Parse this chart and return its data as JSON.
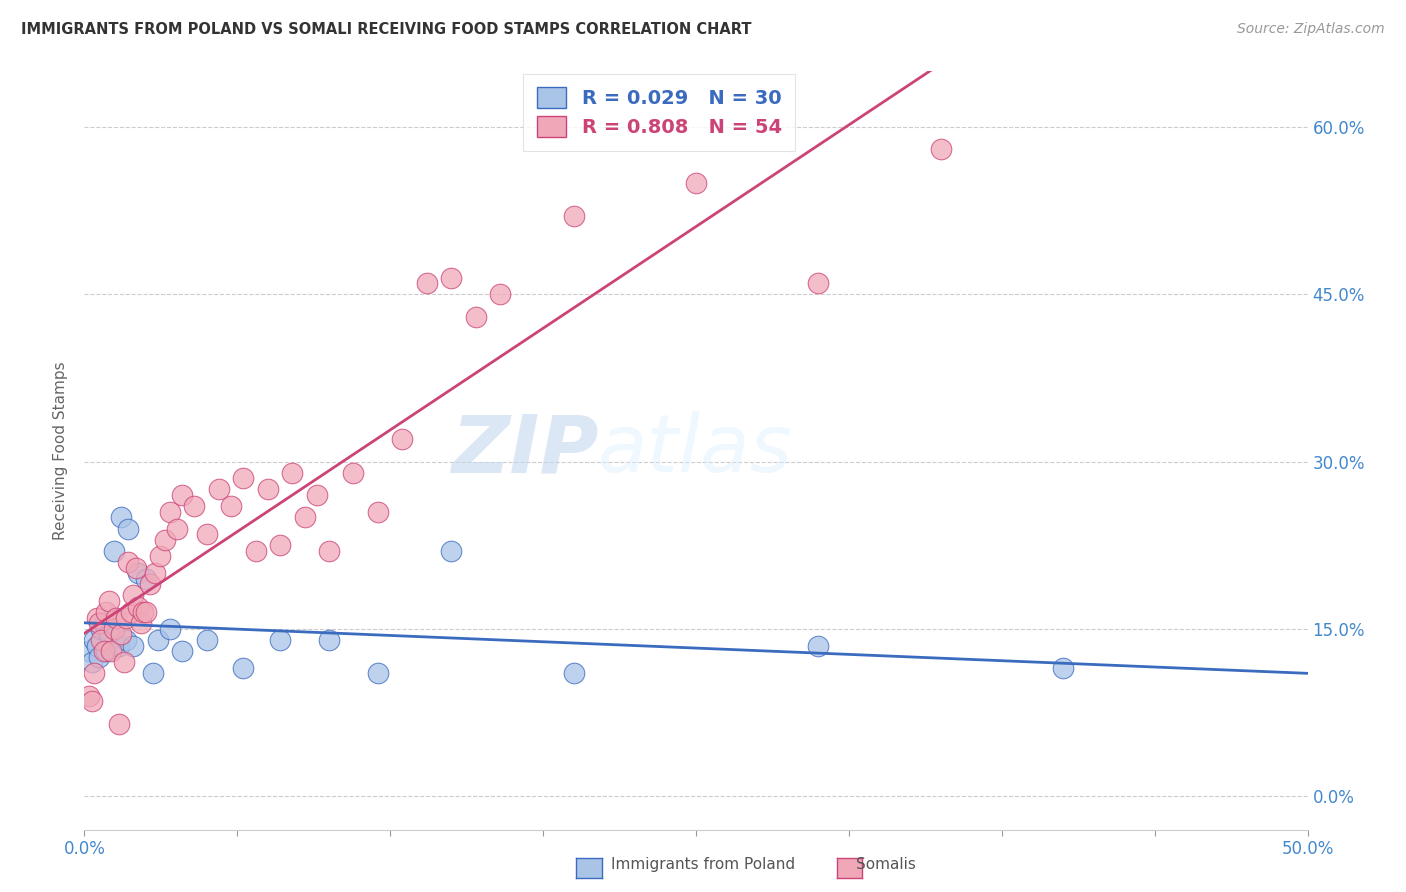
{
  "title": "IMMIGRANTS FROM POLAND VS SOMALI RECEIVING FOOD STAMPS CORRELATION CHART",
  "source": "Source: ZipAtlas.com",
  "ylabel": "Receiving Food Stamps",
  "xlim": [
    0.0,
    50.0
  ],
  "ylim": [
    -3.0,
    65.0
  ],
  "yticks": [
    0.0,
    15.0,
    30.0,
    45.0,
    60.0
  ],
  "xticks": [
    0.0,
    6.25,
    12.5,
    18.75,
    25.0,
    31.25,
    37.5,
    43.75,
    50.0
  ],
  "grid_color": "#cccccc",
  "background_color": "#ffffff",
  "legend_label_poland": "Immigrants from Poland",
  "legend_label_somali": "Somalis",
  "poland_color": "#aac4e8",
  "somali_color": "#f0a8b8",
  "poland_line_color": "#3b6bbf",
  "somali_line_color": "#cc4477",
  "poland_R": 0.029,
  "poland_N": 30,
  "somali_R": 0.808,
  "somali_N": 54,
  "title_color": "#333333",
  "axis_label_color": "#4488cc",
  "watermark_zip": "ZIP",
  "watermark_atlas": "atlas",
  "watermark_color": "#ddeeff",
  "poland_x": [
    0.2,
    0.3,
    0.4,
    0.5,
    0.6,
    0.7,
    0.8,
    0.9,
    1.0,
    1.2,
    1.4,
    1.5,
    1.7,
    1.8,
    2.0,
    2.2,
    2.5,
    2.8,
    3.0,
    3.5,
    4.0,
    5.0,
    6.5,
    8.0,
    10.0,
    12.0,
    15.0,
    20.0,
    30.0,
    40.0
  ],
  "poland_y": [
    13.0,
    12.0,
    14.0,
    13.5,
    12.5,
    15.0,
    15.5,
    13.0,
    14.5,
    22.0,
    13.5,
    25.0,
    14.0,
    24.0,
    13.5,
    20.0,
    19.5,
    11.0,
    14.0,
    15.0,
    13.0,
    14.0,
    11.5,
    14.0,
    14.0,
    11.0,
    22.0,
    11.0,
    13.5,
    11.5
  ],
  "somali_x": [
    0.2,
    0.3,
    0.4,
    0.5,
    0.6,
    0.7,
    0.8,
    0.9,
    1.0,
    1.1,
    1.2,
    1.3,
    1.4,
    1.5,
    1.6,
    1.7,
    1.8,
    1.9,
    2.0,
    2.1,
    2.2,
    2.3,
    2.4,
    2.5,
    2.7,
    2.9,
    3.1,
    3.3,
    3.5,
    3.8,
    4.0,
    4.5,
    5.0,
    5.5,
    6.0,
    6.5,
    7.0,
    7.5,
    8.0,
    8.5,
    9.0,
    9.5,
    10.0,
    11.0,
    12.0,
    13.0,
    14.0,
    15.0,
    16.0,
    17.0,
    20.0,
    25.0,
    30.0,
    35.0
  ],
  "somali_y": [
    9.0,
    8.5,
    11.0,
    16.0,
    15.5,
    14.0,
    13.0,
    16.5,
    17.5,
    13.0,
    15.0,
    16.0,
    6.5,
    14.5,
    12.0,
    16.0,
    21.0,
    16.5,
    18.0,
    20.5,
    17.0,
    15.5,
    16.5,
    16.5,
    19.0,
    20.0,
    21.5,
    23.0,
    25.5,
    24.0,
    27.0,
    26.0,
    23.5,
    27.5,
    26.0,
    28.5,
    22.0,
    27.5,
    22.5,
    29.0,
    25.0,
    27.0,
    22.0,
    29.0,
    25.5,
    32.0,
    46.0,
    46.5,
    43.0,
    45.0,
    52.0,
    55.0,
    46.0,
    58.0
  ]
}
